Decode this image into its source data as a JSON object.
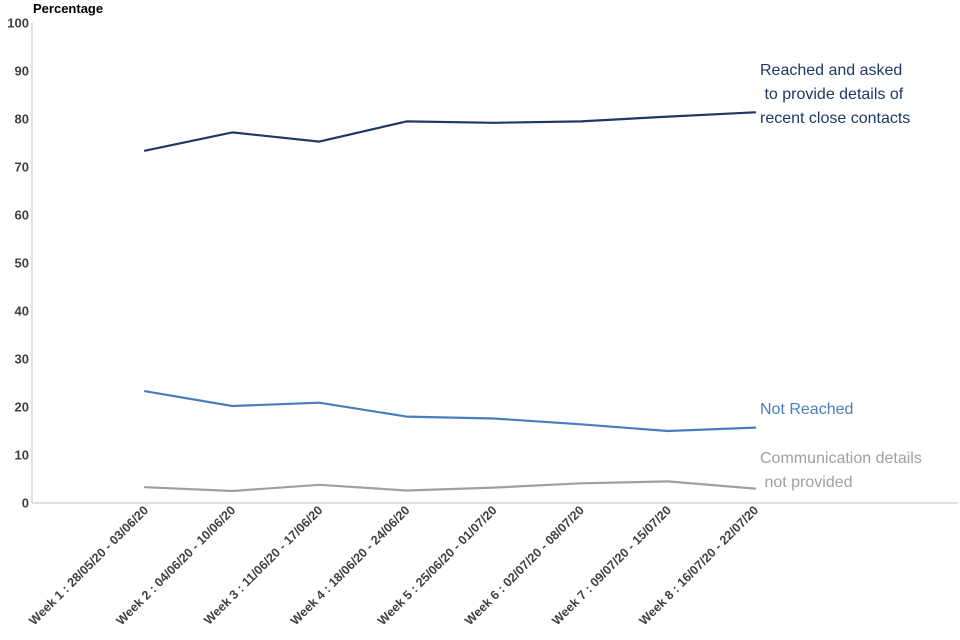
{
  "chart_data": {
    "type": "line",
    "ylabel": "Percentage",
    "ylim": [
      0,
      100
    ],
    "yticks": [
      0,
      10,
      20,
      30,
      40,
      50,
      60,
      70,
      80,
      90,
      100
    ],
    "grid": false,
    "categories": [
      "Week 1 : 28/05/20 - 03/06/20",
      "Week 2 : 04/06/20 - 10/06/20",
      "Week 3 : 11/06/20 - 17/06/20",
      "Week 4 : 18/06/20 - 24/06/20",
      "Week 5 : 25/06/20 - 01/07/20",
      "Week 6 : 02/07/20 - 08/07/20",
      "Week 7 : 09/07/20 - 15/07/20",
      "Week 8 : 16/07/20 - 22/07/20"
    ],
    "series": [
      {
        "name": "Reached and asked to provide details of recent close contacts",
        "label_lines": [
          "Reached and asked",
          " to provide details of",
          "recent close contacts"
        ],
        "color": "#1f3864",
        "values": [
          73.4,
          77.2,
          75.3,
          79.5,
          79.2,
          79.5,
          80.5,
          81.4
        ]
      },
      {
        "name": "Not Reached",
        "label_lines": [
          "Not Reached"
        ],
        "color": "#4a7ebb",
        "values": [
          23.3,
          20.2,
          20.9,
          18.0,
          17.6,
          16.4,
          15.0,
          15.7
        ]
      },
      {
        "name": "Communication details not provided",
        "label_lines": [
          "Communication details",
          " not provided"
        ],
        "color": "#a0a0a0",
        "values": [
          3.3,
          2.5,
          3.8,
          2.6,
          3.2,
          4.1,
          4.5,
          3.0
        ]
      }
    ]
  }
}
